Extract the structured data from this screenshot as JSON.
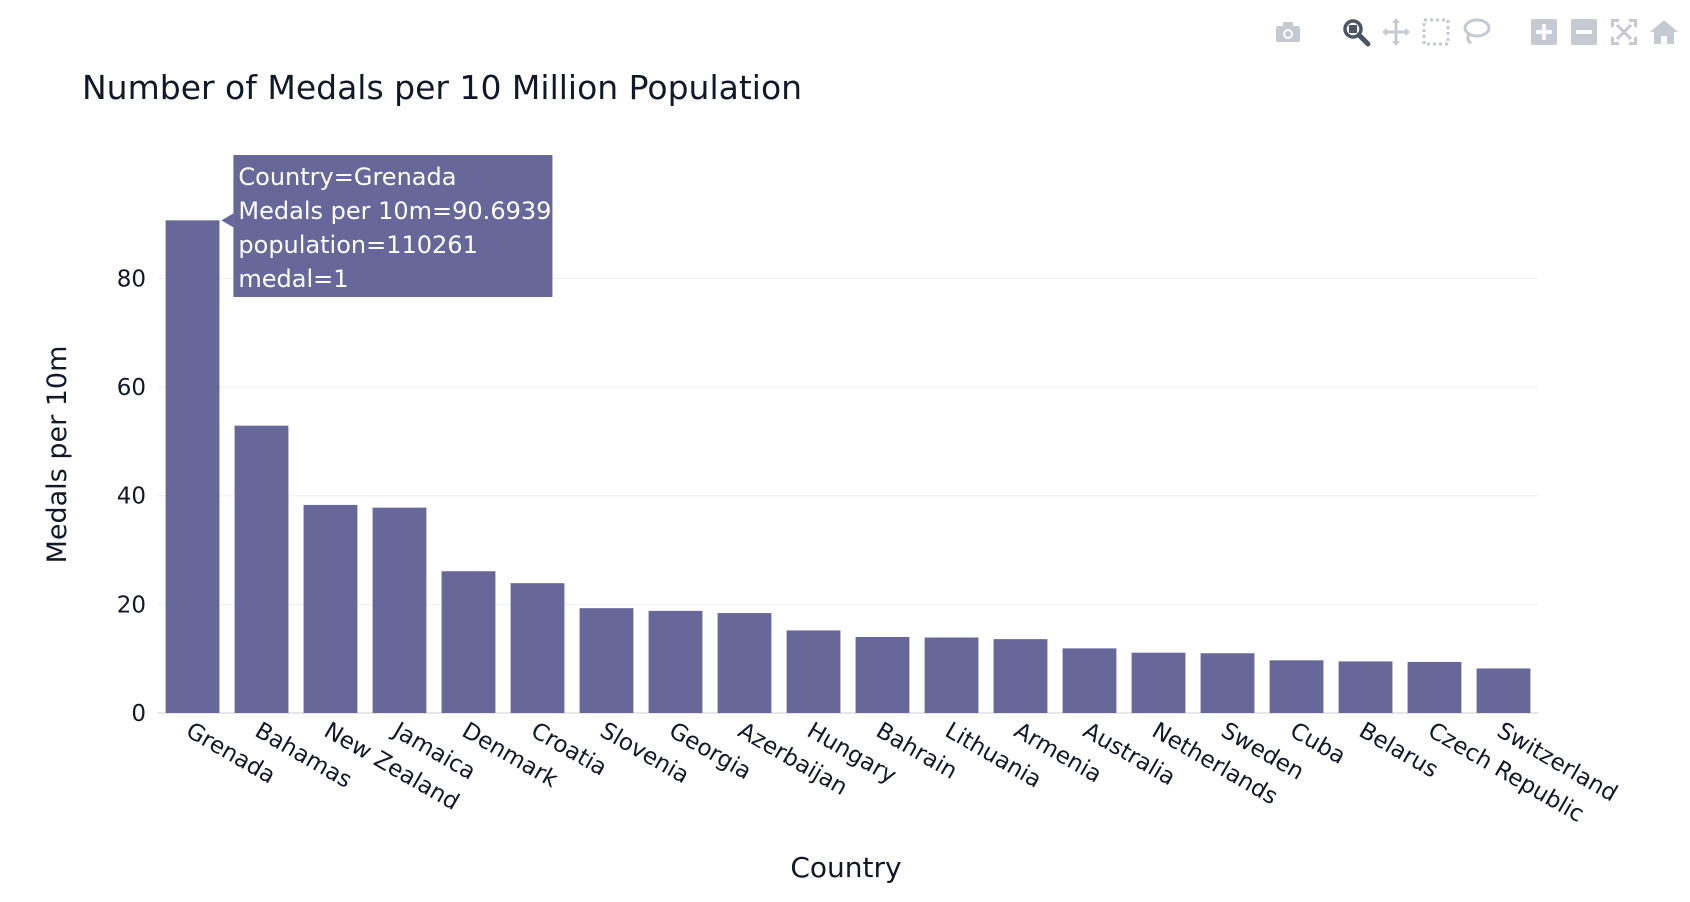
{
  "modebar": {
    "buttons": [
      {
        "name": "camera-icon",
        "group": 0
      },
      {
        "name": "zoom-icon",
        "group": 1,
        "active": true
      },
      {
        "name": "pan-icon",
        "group": 1
      },
      {
        "name": "box-select-icon",
        "group": 1
      },
      {
        "name": "lasso-select-icon",
        "group": 1
      },
      {
        "name": "zoom-in-icon",
        "group": 2
      },
      {
        "name": "zoom-out-icon",
        "group": 2
      },
      {
        "name": "autoscale-icon",
        "group": 2
      },
      {
        "name": "reset-axes-icon",
        "group": 2
      }
    ],
    "icon_color": "#c4c9d2",
    "active_color": "#4b5563"
  },
  "chart_data": {
    "type": "bar",
    "title": "Number of Medals per 10 Million Population",
    "xlabel": "Country",
    "ylabel": "Medals per 10m",
    "categories": [
      "Grenada",
      "Bahamas",
      "New Zealand",
      "Jamaica",
      "Denmark",
      "Croatia",
      "Slovenia",
      "Georgia",
      "Azerbaijan",
      "Hungary",
      "Bahrain",
      "Lithuania",
      "Armenia",
      "Australia",
      "Netherlands",
      "Sweden",
      "Cuba",
      "Belarus",
      "Czech Republic",
      "Switzerland"
    ],
    "values": [
      90.6939,
      52.9,
      38.3,
      37.8,
      26.1,
      23.9,
      19.3,
      18.8,
      18.4,
      15.2,
      14.0,
      13.9,
      13.6,
      11.9,
      11.1,
      11.0,
      9.7,
      9.5,
      9.4,
      8.2
    ],
    "ylim": [
      0,
      92.6
    ],
    "yticks": [
      0,
      20,
      40,
      60,
      80
    ],
    "grid": true,
    "bar_color": "#67679a",
    "hover": {
      "index": 0,
      "lines": [
        "Country=Grenada",
        "Medals per 10m=90.6939",
        "population=110261",
        "medal=1"
      ]
    }
  }
}
